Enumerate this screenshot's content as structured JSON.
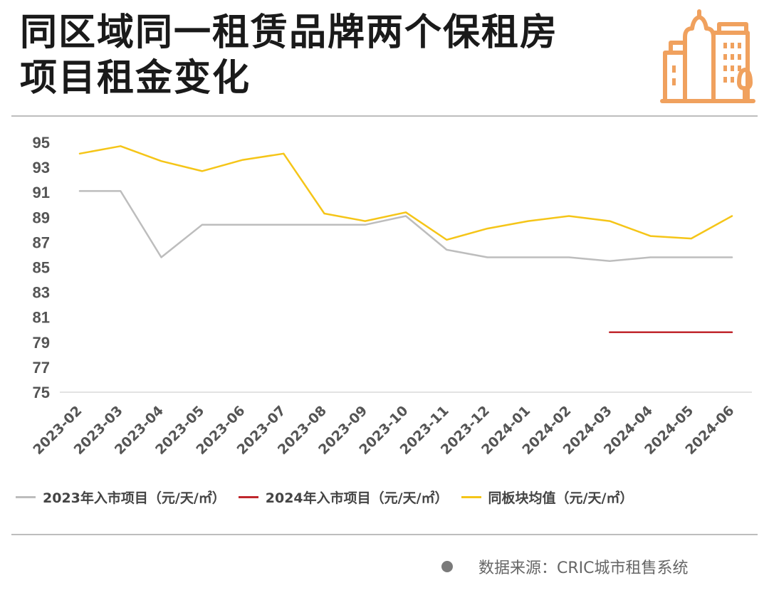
{
  "header": {
    "title_line1": "同区域同一租赁品牌两个保租房",
    "title_line2": "项目租金变化",
    "logo_icon": "city-buildings-icon",
    "logo_color": "#F0A15E"
  },
  "legend": {
    "items": [
      {
        "label": "2023年入市项目（元/天/㎡）",
        "color": "#BDBDBD"
      },
      {
        "label": "2024年入市项目（元/天/㎡）",
        "color": "#C0272D"
      },
      {
        "label": "同板块均值（元/天/㎡）",
        "color": "#F5C518"
      }
    ]
  },
  "source": {
    "text": "数据来源：CRIC城市租售系统",
    "bullet_icon": "bullet-dot-icon"
  },
  "chart_data": {
    "type": "line",
    "title": "同区域同一租赁品牌两个保租房项目租金变化",
    "xlabel": "",
    "ylabel": "",
    "ylim": [
      75,
      95
    ],
    "yticks": [
      75,
      77,
      79,
      81,
      83,
      85,
      87,
      89,
      91,
      93,
      95
    ],
    "grid": false,
    "legend_position": "bottom",
    "categories": [
      "2023-02",
      "2023-03",
      "2023-04",
      "2023-05",
      "2023-06",
      "2023-07",
      "2023-08",
      "2023-09",
      "2023-10",
      "2023-11",
      "2023-12",
      "2024-01",
      "2024-02",
      "2024-03",
      "2024-04",
      "2024-05",
      "2024-06"
    ],
    "series": [
      {
        "name": "2023年入市项目（元/天/㎡）",
        "color": "#BDBDBD",
        "values": [
          91.1,
          91.1,
          85.8,
          88.4,
          88.4,
          88.4,
          88.4,
          88.4,
          89.1,
          86.4,
          85.8,
          85.8,
          85.8,
          85.5,
          85.8,
          85.8,
          85.8
        ]
      },
      {
        "name": "2024年入市项目（元/天/㎡）",
        "color": "#C0272D",
        "values": [
          null,
          null,
          null,
          null,
          null,
          null,
          null,
          null,
          null,
          null,
          null,
          null,
          null,
          79.8,
          79.8,
          79.8,
          79.8
        ]
      },
      {
        "name": "同板块均值（元/天/㎡）",
        "color": "#F5C518",
        "values": [
          94.1,
          94.7,
          93.5,
          92.7,
          93.6,
          94.1,
          89.3,
          88.7,
          89.4,
          87.2,
          88.1,
          88.7,
          89.1,
          88.7,
          87.5,
          87.3,
          89.1
        ]
      }
    ]
  }
}
